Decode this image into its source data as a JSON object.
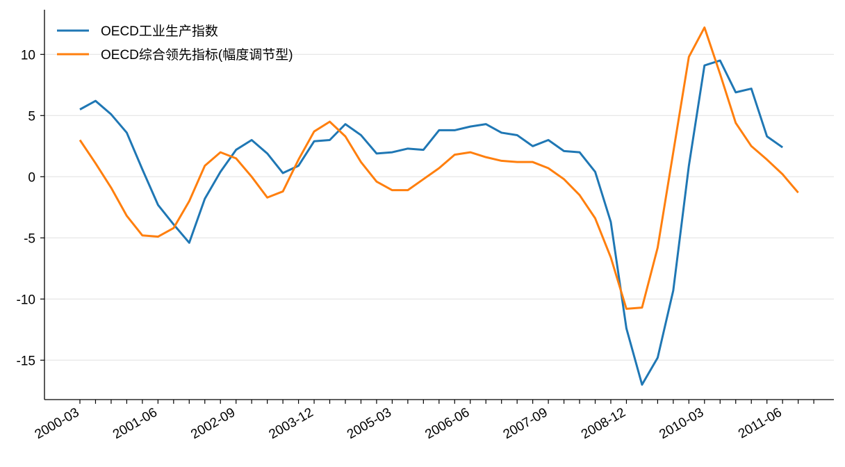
{
  "chart_data": {
    "type": "line",
    "title": "",
    "xlabel": "",
    "ylabel": "",
    "ylim": [
      -18,
      13.5
    ],
    "yticks": [
      10,
      5,
      0,
      -5,
      -10,
      -15
    ],
    "grid": "horizontal",
    "legend_position": "top-left",
    "x": [
      "2000-03",
      "2000-06",
      "2000-09",
      "2000-12",
      "2001-03",
      "2001-06",
      "2001-09",
      "2001-12",
      "2002-03",
      "2002-06",
      "2002-09",
      "2002-12",
      "2003-03",
      "2003-06",
      "2003-09",
      "2003-12",
      "2004-03",
      "2004-06",
      "2004-09",
      "2004-12",
      "2005-03",
      "2005-06",
      "2005-09",
      "2005-12",
      "2006-03",
      "2006-06",
      "2006-09",
      "2006-12",
      "2007-03",
      "2007-06",
      "2007-09",
      "2007-12",
      "2008-03",
      "2008-06",
      "2008-09",
      "2008-12",
      "2009-03",
      "2009-06",
      "2009-09",
      "2009-12",
      "2010-03",
      "2010-06",
      "2010-09",
      "2010-12",
      "2011-03",
      "2011-06",
      "2011-09",
      "2011-12"
    ],
    "xtick_labels": [
      "2000-03",
      "2001-06",
      "2002-09",
      "2003-12",
      "2005-03",
      "2006-06",
      "2007-09",
      "2008-12",
      "2010-03",
      "2011-06"
    ],
    "series": [
      {
        "name": "OECD工业生产指数",
        "color": "#1f77b4",
        "values": [
          5.5,
          6.2,
          5.1,
          3.6,
          0.6,
          -2.3,
          -3.9,
          -5.4,
          -1.8,
          0.4,
          2.2,
          3.0,
          1.9,
          0.3,
          0.9,
          2.9,
          3.0,
          4.3,
          3.4,
          1.9,
          2.0,
          2.3,
          2.2,
          3.8,
          3.8,
          4.1,
          4.3,
          3.6,
          3.4,
          2.5,
          3.0,
          2.1,
          2.0,
          0.4,
          -3.7,
          -12.4,
          -17.0,
          -14.8,
          -9.3,
          0.9,
          9.1,
          9.5,
          6.9,
          7.2,
          3.3,
          2.4,
          null,
          null
        ]
      },
      {
        "name": "OECD综合领先指标(幅度调节型)",
        "color": "#ff7f0e",
        "values": [
          3.0,
          1.1,
          -0.9,
          -3.2,
          -4.8,
          -4.9,
          -4.2,
          -2.0,
          0.9,
          2.0,
          1.5,
          0.0,
          -1.7,
          -1.2,
          1.4,
          3.7,
          4.5,
          3.3,
          1.2,
          -0.4,
          -1.1,
          -1.1,
          -0.2,
          0.7,
          1.8,
          2.0,
          1.6,
          1.3,
          1.2,
          1.2,
          0.7,
          -0.2,
          -1.5,
          -3.4,
          -6.6,
          -10.8,
          -10.7,
          -5.8,
          2.0,
          9.8,
          12.2,
          8.4,
          4.4,
          2.5,
          1.4,
          0.2,
          -1.3,
          null
        ]
      }
    ]
  }
}
